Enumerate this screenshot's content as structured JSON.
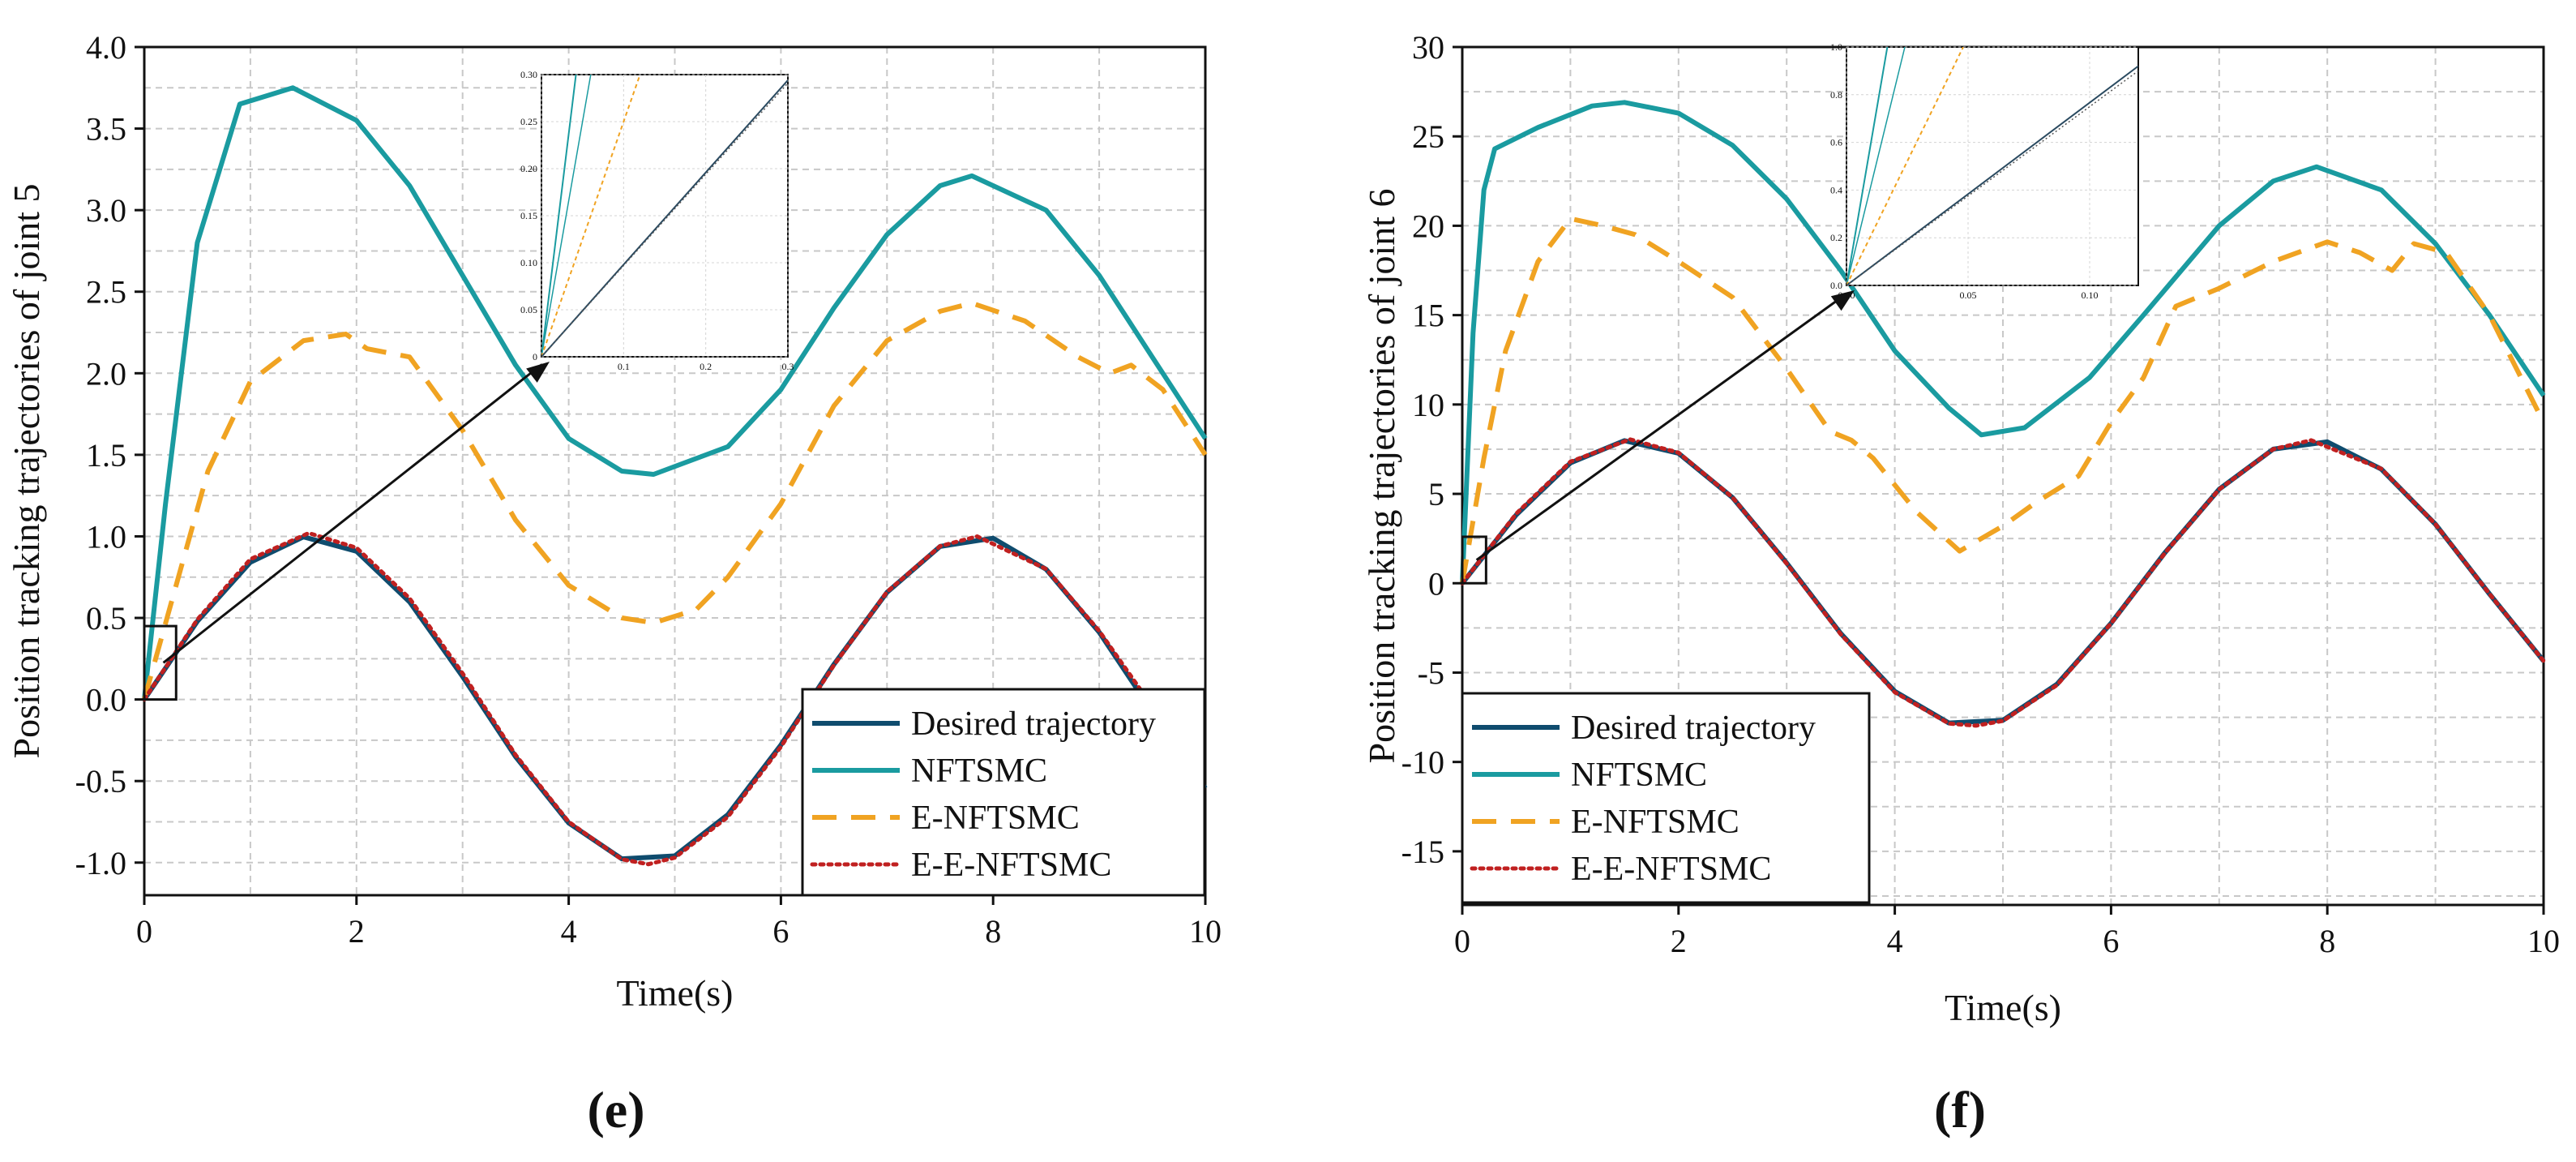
{
  "colors": {
    "desired": "#0f4c6e",
    "nftsmc": "#1a9ba0",
    "enftsmc": "#f0a322",
    "eenftsmc": "#c02020",
    "grid": "#c8c8c8",
    "inset_nftsmc": "#1a9ba0",
    "inset_desired": "#2a4a60"
  },
  "legend": {
    "desired": "Desired trajectory",
    "nftsmc": "NFTSMC",
    "enftsmc": "E-NFTSMC",
    "eenftsmc": "E-E-NFTSMC"
  },
  "chart_data": [
    {
      "type": "line",
      "panel_label": "(e)",
      "xlabel": "Time(s)",
      "ylabel": "Position tracking trajectories of joint 5",
      "xlim": [
        0,
        10
      ],
      "ylim": [
        -1.2,
        4.0
      ],
      "xticks": [
        "0",
        "2",
        "4",
        "6",
        "8",
        "10"
      ],
      "yticks": [
        "-1.0",
        "-0.5",
        "0.0",
        "0.5",
        "1.0",
        "1.5",
        "2.0",
        "2.5",
        "3.0",
        "3.5",
        "4.0"
      ],
      "grid": true,
      "legend_position": "bottom-right",
      "series": [
        {
          "name": "Desired trajectory",
          "key": "desired",
          "x": [
            0,
            0.5,
            1,
            1.5,
            2,
            2.5,
            3,
            3.5,
            4,
            4.5,
            5,
            5.5,
            6,
            6.5,
            7,
            7.5,
            8,
            8.5,
            9,
            9.5,
            10
          ],
          "y": [
            0,
            0.479,
            0.841,
            0.997,
            0.909,
            0.598,
            0.141,
            -0.351,
            -0.757,
            -0.977,
            -0.959,
            -0.706,
            -0.279,
            0.215,
            0.657,
            0.938,
            0.989,
            0.798,
            0.412,
            -0.075,
            -0.544
          ]
        },
        {
          "name": "NFTSMC",
          "key": "nftsmc",
          "x": [
            0,
            0.2,
            0.5,
            0.9,
            1.4,
            2,
            2.5,
            3,
            3.5,
            4,
            4.5,
            4.8,
            5.5,
            6,
            6.5,
            7,
            7.5,
            7.8,
            8.5,
            9,
            9.5,
            10
          ],
          "y": [
            0,
            1.2,
            2.8,
            3.65,
            3.75,
            3.55,
            3.15,
            2.6,
            2.05,
            1.6,
            1.4,
            1.38,
            1.55,
            1.9,
            2.4,
            2.85,
            3.15,
            3.21,
            3.0,
            2.6,
            2.1,
            1.6
          ]
        },
        {
          "name": "E-NFTSMC",
          "key": "enftsmc",
          "x": [
            0,
            0.3,
            0.6,
            1,
            1.5,
            1.9,
            2.1,
            2.5,
            3,
            3.5,
            4,
            4.5,
            4.8,
            5.2,
            5.5,
            6,
            6.5,
            7,
            7.5,
            7.8,
            8.3,
            8.8,
            9.1,
            9.3,
            9.6,
            10
          ],
          "y": [
            0,
            0.7,
            1.4,
            1.95,
            2.2,
            2.24,
            2.15,
            2.1,
            1.65,
            1.1,
            0.7,
            0.5,
            0.47,
            0.55,
            0.75,
            1.2,
            1.8,
            2.2,
            2.38,
            2.43,
            2.32,
            2.1,
            2.0,
            2.05,
            1.9,
            1.5
          ]
        },
        {
          "name": "E-E-NFTSMC",
          "key": "eenftsmc",
          "x": [
            0,
            0.5,
            1,
            1.55,
            2,
            2.5,
            3,
            3.5,
            4,
            4.5,
            4.75,
            5,
            5.5,
            6,
            6.5,
            7,
            7.5,
            7.85,
            8.5,
            9,
            9.4
          ],
          "y": [
            0,
            0.49,
            0.86,
            1.02,
            0.93,
            0.62,
            0.16,
            -0.34,
            -0.75,
            -0.98,
            -1.01,
            -0.97,
            -0.72,
            -0.29,
            0.21,
            0.66,
            0.94,
            1.0,
            0.8,
            0.42,
            0.05
          ]
        }
      ],
      "inset": {
        "xlim": [
          0,
          0.3
        ],
        "ylim": [
          0,
          0.3
        ],
        "xticks": [
          "0",
          "0.1",
          "0.2",
          "0.3"
        ],
        "yticks": [
          "0",
          "0.05",
          "0.10",
          "0.15",
          "0.20",
          "0.25",
          "0.30"
        ]
      }
    },
    {
      "type": "line",
      "panel_label": "(f)",
      "xlabel": "Time(s)",
      "ylabel": "Position tracking trajectories of joint 6",
      "xlim": [
        0,
        10
      ],
      "ylim": [
        -18,
        30
      ],
      "xticks": [
        "0",
        "2",
        "4",
        "6",
        "8",
        "10"
      ],
      "yticks": [
        "-15",
        "-10",
        "-5",
        "0",
        "5",
        "10",
        "15",
        "20",
        "25",
        "30"
      ],
      "grid": true,
      "legend_position": "bottom-left",
      "series": [
        {
          "name": "Desired trajectory",
          "key": "desired",
          "x": [
            0,
            0.5,
            1,
            1.5,
            2,
            2.5,
            3,
            3.5,
            4,
            4.5,
            5,
            5.5,
            6,
            6.5,
            7,
            7.5,
            8,
            8.5,
            9,
            9.5,
            10
          ],
          "y": [
            0,
            3.83,
            6.73,
            7.98,
            7.27,
            4.79,
            1.13,
            -2.81,
            -6.05,
            -7.82,
            -7.67,
            -5.65,
            -2.24,
            1.72,
            5.26,
            7.5,
            7.91,
            6.38,
            3.3,
            -0.6,
            -4.35
          ]
        },
        {
          "name": "NFTSMC",
          "key": "nftsmc",
          "x": [
            0,
            0.1,
            0.2,
            0.3,
            0.7,
            1.2,
            1.5,
            2,
            2.5,
            3,
            3.5,
            4,
            4.5,
            4.8,
            5.2,
            5.8,
            6.3,
            7,
            7.5,
            7.9,
            8.5,
            9,
            9.5,
            10
          ],
          "y": [
            0,
            14,
            22,
            24.3,
            25.5,
            26.7,
            26.9,
            26.3,
            24.5,
            21.5,
            17.5,
            13,
            9.8,
            8.3,
            8.7,
            11.5,
            15,
            20,
            22.5,
            23.3,
            22,
            19,
            15,
            10.5
          ]
        },
        {
          "name": "E-NFTSMC",
          "key": "enftsmc",
          "x": [
            0,
            0.2,
            0.4,
            0.7,
            1,
            1.3,
            1.6,
            2,
            2.5,
            3,
            3.4,
            3.6,
            3.8,
            4.2,
            4.6,
            5,
            5.3,
            5.7,
            6,
            6.3,
            6.6,
            7,
            7.5,
            8,
            8.3,
            8.6,
            8.8,
            9.1,
            9.5,
            10
          ],
          "y": [
            0,
            7,
            13,
            18,
            20.4,
            20,
            19.5,
            18,
            16,
            12,
            8.5,
            8,
            7,
            4,
            1.8,
            3.2,
            4.5,
            6,
            9,
            11.5,
            15.5,
            16.5,
            18,
            19.1,
            18.5,
            17.5,
            19,
            18.5,
            15,
            9
          ]
        },
        {
          "name": "E-E-NFTSMC",
          "key": "eenftsmc",
          "x": [
            0,
            0.5,
            1,
            1.55,
            2,
            2.5,
            3,
            3.5,
            4,
            4.5,
            4.75,
            5,
            5.5,
            6,
            6.5,
            7,
            7.5,
            7.85,
            8.5,
            9,
            9.5,
            10
          ],
          "y": [
            0,
            3.9,
            6.8,
            8.05,
            7.3,
            4.8,
            1.1,
            -2.85,
            -6.1,
            -7.85,
            -7.97,
            -7.7,
            -5.7,
            -2.25,
            1.7,
            5.25,
            7.5,
            8.0,
            6.4,
            3.3,
            -0.6,
            -4.35
          ]
        }
      ],
      "inset": {
        "xlim": [
          0,
          0.12
        ],
        "ylim": [
          0,
          1.0
        ],
        "xticks": [
          "0.00",
          "0.05",
          "0.10"
        ],
        "yticks": [
          "0.0",
          "0.2",
          "0.4",
          "0.6",
          "0.8",
          "1.0"
        ]
      }
    }
  ]
}
